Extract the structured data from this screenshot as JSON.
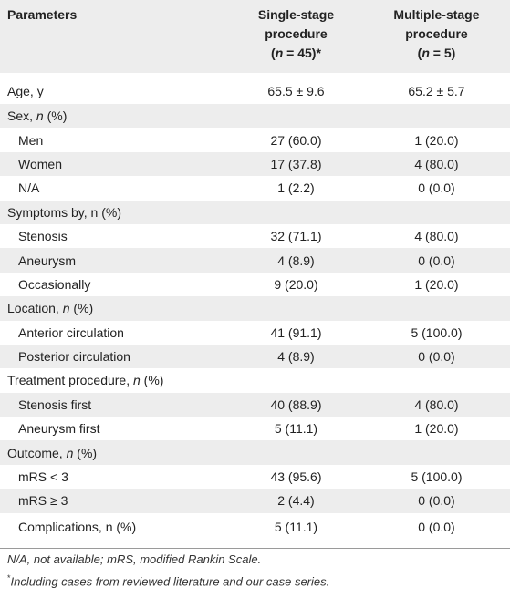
{
  "header": {
    "col0": "Parameters",
    "col1_lines": [
      "Single-stage",
      "procedure",
      "(n = 45)*"
    ],
    "col2_lines": [
      "Multiple-stage",
      "procedure",
      "(n = 5)"
    ]
  },
  "rows": [
    {
      "label": "Age, y",
      "single": "65.5 ± 9.6",
      "multi": "65.2 ± 5.7",
      "indent": false
    },
    {
      "label": "Sex, n (%)",
      "single": "",
      "multi": "",
      "indent": false
    },
    {
      "label": "Men",
      "single": "27 (60.0)",
      "multi": "1 (20.0)",
      "indent": true
    },
    {
      "label": "Women",
      "single": "17 (37.8)",
      "multi": "4 (80.0)",
      "indent": true
    },
    {
      "label": "N/A",
      "single": "1 (2.2)",
      "multi": "0 (0.0)",
      "indent": true
    },
    {
      "label": "Symptoms by, n (%)",
      "single": "",
      "multi": "",
      "indent": false
    },
    {
      "label": "Stenosis",
      "single": "32 (71.1)",
      "multi": "4 (80.0)",
      "indent": true
    },
    {
      "label": "Aneurysm",
      "single": "4 (8.9)",
      "multi": "0 (0.0)",
      "indent": true
    },
    {
      "label": "Occasionally",
      "single": "9 (20.0)",
      "multi": "1 (20.0)",
      "indent": true
    },
    {
      "label": "Location, n (%)",
      "single": "",
      "multi": "",
      "indent": false
    },
    {
      "label": "Anterior circulation",
      "single": "41 (91.1)",
      "multi": "5 (100.0)",
      "indent": true
    },
    {
      "label": "Posterior circulation",
      "single": "4 (8.9)",
      "multi": "0 (0.0)",
      "indent": true
    },
    {
      "label": "Treatment procedure, n (%)",
      "single": "",
      "multi": "",
      "indent": false
    },
    {
      "label": "Stenosis first",
      "single": "40 (88.9)",
      "multi": "4 (80.0)",
      "indent": true
    },
    {
      "label": "Aneurysm first",
      "single": "5 (11.1)",
      "multi": "1 (20.0)",
      "indent": true
    },
    {
      "label": "Outcome, n (%)",
      "single": "",
      "multi": "",
      "indent": false
    },
    {
      "label": "mRS < 3",
      "single": "43 (95.6)",
      "multi": "5 (100.0)",
      "indent": true
    },
    {
      "label": "mRS ≥ 3",
      "single": "2 (4.4)",
      "multi": "0 (0.0)",
      "indent": true
    },
    {
      "label": "Complications, n (%)",
      "single": "5 (11.1)",
      "multi": "0 (0.0)",
      "indent": true
    }
  ],
  "footnotes": {
    "note1": "N/A, not available; mRS, modified Rankin Scale.",
    "note2_marker": "*",
    "note2": "Including cases from reviewed literature and our case series."
  }
}
